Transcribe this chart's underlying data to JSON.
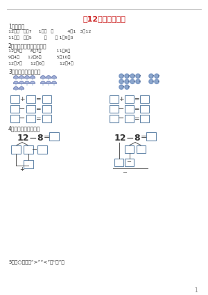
{
  "title": "〈12几」基础习题",
  "title_color": "#cc2222",
  "bg_color": "#ffffff",
  "line_color": "#bbbbbb",
  "text_color": "#333333",
  "box_color": "#6688aa",
  "s1": "1．填空。",
  "s1l1": "12－（   ）＝7     1＋（   ）          4＋1     3＋12",
  "s1l2": "11－（   ）＝5          （      ） 1－9＝3",
  "s2": "2．写出下列算式的得数。",
  "s2l1": "12－5＝      8＋7＝           11＋8＝",
  "s2l2": "9＋4＝      12－8＝           5＋10＝",
  "s2l3": "12－7＝      12－6＝           12－4＝",
  "s3": "3．数一数，填一填。",
  "s4": "4．想一想，填一填。",
  "s5": "5．在○里填上“>”“<”或“＝”。",
  "footer": "1"
}
